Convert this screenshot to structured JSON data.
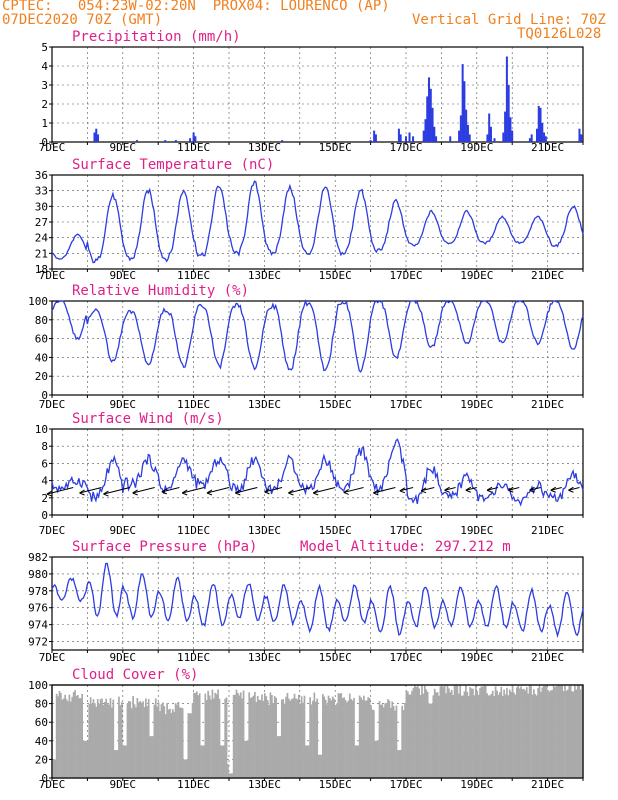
{
  "header": {
    "line1": "CPTEC:   054:23W-02:20N  PROX04: LOURENCO (AP)",
    "line2": "07DEC2020 70Z (GMT)",
    "grid_note": "Vertical Grid Line: 70Z",
    "code": "TQ0126L028"
  },
  "x_labels": [
    "7DEC",
    "9DEC",
    "11DEC",
    "13DEC",
    "15DEC",
    "17DEC",
    "19DEC",
    "21DEC"
  ],
  "x_range_days": [
    7,
    22
  ],
  "colors": {
    "series": "#2c3ce0",
    "title": "#e0208a",
    "header": "#f08020",
    "cloud": "#aaaaaa"
  },
  "chart_data": [
    {
      "type": "bar",
      "title": "Precipitation (mm/h)",
      "ylim": [
        0,
        5
      ],
      "yticks": [
        0,
        1,
        2,
        3,
        4,
        5
      ],
      "x_unit": "day of December",
      "bars": [
        [
          8.2,
          0.5
        ],
        [
          8.25,
          0.7
        ],
        [
          8.3,
          0.4
        ],
        [
          9.4,
          0.1
        ],
        [
          10.2,
          0.1
        ],
        [
          10.5,
          0.1
        ],
        [
          10.9,
          0.2
        ],
        [
          11.0,
          0.5
        ],
        [
          11.05,
          0.3
        ],
        [
          13.5,
          0.1
        ],
        [
          16.0,
          0.1
        ],
        [
          16.1,
          0.6
        ],
        [
          16.15,
          0.4
        ],
        [
          16.8,
          0.7
        ],
        [
          16.85,
          0.4
        ],
        [
          17.0,
          0.3
        ],
        [
          17.1,
          0.5
        ],
        [
          17.2,
          0.3
        ],
        [
          17.5,
          0.6
        ],
        [
          17.55,
          1.2
        ],
        [
          17.6,
          2.4
        ],
        [
          17.65,
          3.4
        ],
        [
          17.7,
          2.8
        ],
        [
          17.75,
          1.8
        ],
        [
          17.8,
          0.8
        ],
        [
          17.85,
          0.3
        ],
        [
          18.25,
          0.3
        ],
        [
          18.5,
          0.6
        ],
        [
          18.55,
          1.4
        ],
        [
          18.6,
          4.1
        ],
        [
          18.65,
          3.2
        ],
        [
          18.7,
          1.7
        ],
        [
          18.75,
          0.9
        ],
        [
          18.8,
          0.4
        ],
        [
          19.3,
          0.4
        ],
        [
          19.35,
          1.5
        ],
        [
          19.4,
          0.8
        ],
        [
          19.5,
          0.2
        ],
        [
          19.75,
          0.5
        ],
        [
          19.8,
          1.6
        ],
        [
          19.85,
          4.5
        ],
        [
          19.9,
          3.0
        ],
        [
          19.95,
          1.3
        ],
        [
          20.0,
          0.6
        ],
        [
          20.5,
          0.2
        ],
        [
          20.55,
          0.4
        ],
        [
          20.7,
          0.7
        ],
        [
          20.75,
          1.9
        ],
        [
          20.8,
          1.8
        ],
        [
          20.85,
          1.0
        ],
        [
          20.9,
          0.5
        ],
        [
          20.95,
          0.3
        ],
        [
          21.9,
          0.7
        ],
        [
          21.95,
          0.4
        ]
      ]
    },
    {
      "type": "line",
      "title": "Surface Temperature (nC)",
      "ylim": [
        18,
        36
      ],
      "yticks": [
        18,
        21,
        24,
        27,
        30,
        33,
        36
      ],
      "daily": [
        [
          20,
          24.5
        ],
        [
          19.5,
          32
        ],
        [
          20,
          33
        ],
        [
          20,
          33
        ],
        [
          20.5,
          34
        ],
        [
          21,
          34.5
        ],
        [
          21,
          33.5
        ],
        [
          21,
          33.5
        ],
        [
          21,
          33
        ],
        [
          21.5,
          31
        ],
        [
          22.5,
          29
        ],
        [
          23,
          29
        ],
        [
          23,
          28
        ],
        [
          23,
          28
        ],
        [
          22.5,
          30
        ],
        [
          24,
          30
        ]
      ]
    },
    {
      "type": "line",
      "title": "Relative Humidity (%)",
      "ylim": [
        0,
        100
      ],
      "yticks": [
        0,
        20,
        40,
        60,
        80,
        100
      ],
      "daily": [
        [
          60,
          100
        ],
        [
          35,
          90
        ],
        [
          32,
          88
        ],
        [
          30,
          90
        ],
        [
          30,
          95
        ],
        [
          28,
          95
        ],
        [
          25,
          95
        ],
        [
          25,
          98
        ],
        [
          27,
          100
        ],
        [
          40,
          100
        ],
        [
          50,
          100
        ],
        [
          55,
          100
        ],
        [
          55,
          100
        ],
        [
          55,
          100
        ],
        [
          48,
          100
        ],
        [
          50,
          86
        ]
      ]
    },
    {
      "type": "line",
      "title": "Surface Wind (m/s)",
      "ylim": [
        0,
        10
      ],
      "yticks": [
        0,
        2,
        4,
        6,
        8,
        10
      ],
      "daily": [
        [
          3.2,
          4
        ],
        [
          2,
          6.2
        ],
        [
          3.5,
          6.5
        ],
        [
          3,
          6.5
        ],
        [
          3.5,
          6.5
        ],
        [
          3,
          6.5
        ],
        [
          3,
          6.3
        ],
        [
          3,
          6.5
        ],
        [
          3,
          7.5
        ],
        [
          3,
          8.3
        ],
        [
          1.5,
          5.5
        ],
        [
          2,
          4.5
        ],
        [
          1.8,
          3.5
        ],
        [
          1.6,
          3.3
        ],
        [
          1.8,
          4.5
        ],
        [
          2.5,
          6
        ]
      ],
      "wind_arrows": [
        [
          7.6,
          -12
        ],
        [
          8.4,
          -10
        ],
        [
          9.2,
          -12
        ],
        [
          9.9,
          -10
        ],
        [
          10.6,
          -8
        ],
        [
          11.3,
          -10
        ],
        [
          12.0,
          -10
        ],
        [
          12.8,
          -10
        ],
        [
          13.5,
          -8
        ],
        [
          14.3,
          -10
        ],
        [
          15.0,
          -10
        ],
        [
          15.8,
          -9
        ],
        [
          16.7,
          -10
        ],
        [
          17.2,
          -6
        ],
        [
          17.8,
          -6
        ],
        [
          18.4,
          -5
        ],
        [
          19.0,
          -5
        ],
        [
          19.6,
          -5
        ],
        [
          20.2,
          -5
        ],
        [
          20.8,
          -5
        ],
        [
          21.4,
          -5
        ],
        [
          21.9,
          -5
        ]
      ]
    },
    {
      "type": "line",
      "title": "Surface Pressure (hPa)",
      "subtitle": "Model Altitude: 297.212 m",
      "ylim": [
        971,
        982
      ],
      "yticks": [
        972,
        974,
        976,
        978,
        980,
        982
      ],
      "daily": [
        [
          976.5,
          979.5
        ],
        [
          974,
          981.2
        ],
        [
          974,
          980
        ],
        [
          973.5,
          979.5
        ],
        [
          973,
          979
        ],
        [
          974,
          979
        ],
        [
          973.5,
          978.8
        ],
        [
          972.5,
          978.5
        ],
        [
          973.5,
          978.6
        ],
        [
          972,
          978.5
        ],
        [
          973,
          978.5
        ],
        [
          973,
          978.5
        ],
        [
          973,
          978.5
        ],
        [
          972.5,
          978
        ],
        [
          972,
          978
        ],
        [
          971.5,
          977.5
        ]
      ]
    },
    {
      "type": "area",
      "title": "Cloud Cover (%)",
      "ylim": [
        0,
        100
      ],
      "yticks": [
        0,
        20,
        40,
        60,
        80,
        100
      ],
      "daily_base": [
        88,
        82,
        82,
        75,
        90,
        88,
        85,
        85,
        85,
        78,
        95,
        95,
        95,
        95,
        97,
        97
      ],
      "dips": [
        [
          7.05,
          20
        ],
        [
          7.95,
          40
        ],
        [
          8.8,
          30
        ],
        [
          9.05,
          35
        ],
        [
          9.8,
          45
        ],
        [
          10.75,
          20
        ],
        [
          11.25,
          35
        ],
        [
          11.8,
          35
        ],
        [
          12.0,
          15
        ],
        [
          12.05,
          5
        ],
        [
          12.5,
          40
        ],
        [
          13.4,
          45
        ],
        [
          14.2,
          35
        ],
        [
          14.55,
          25
        ],
        [
          15.6,
          35
        ],
        [
          16.15,
          40
        ],
        [
          16.8,
          30
        ],
        [
          17.7,
          80
        ]
      ]
    }
  ]
}
